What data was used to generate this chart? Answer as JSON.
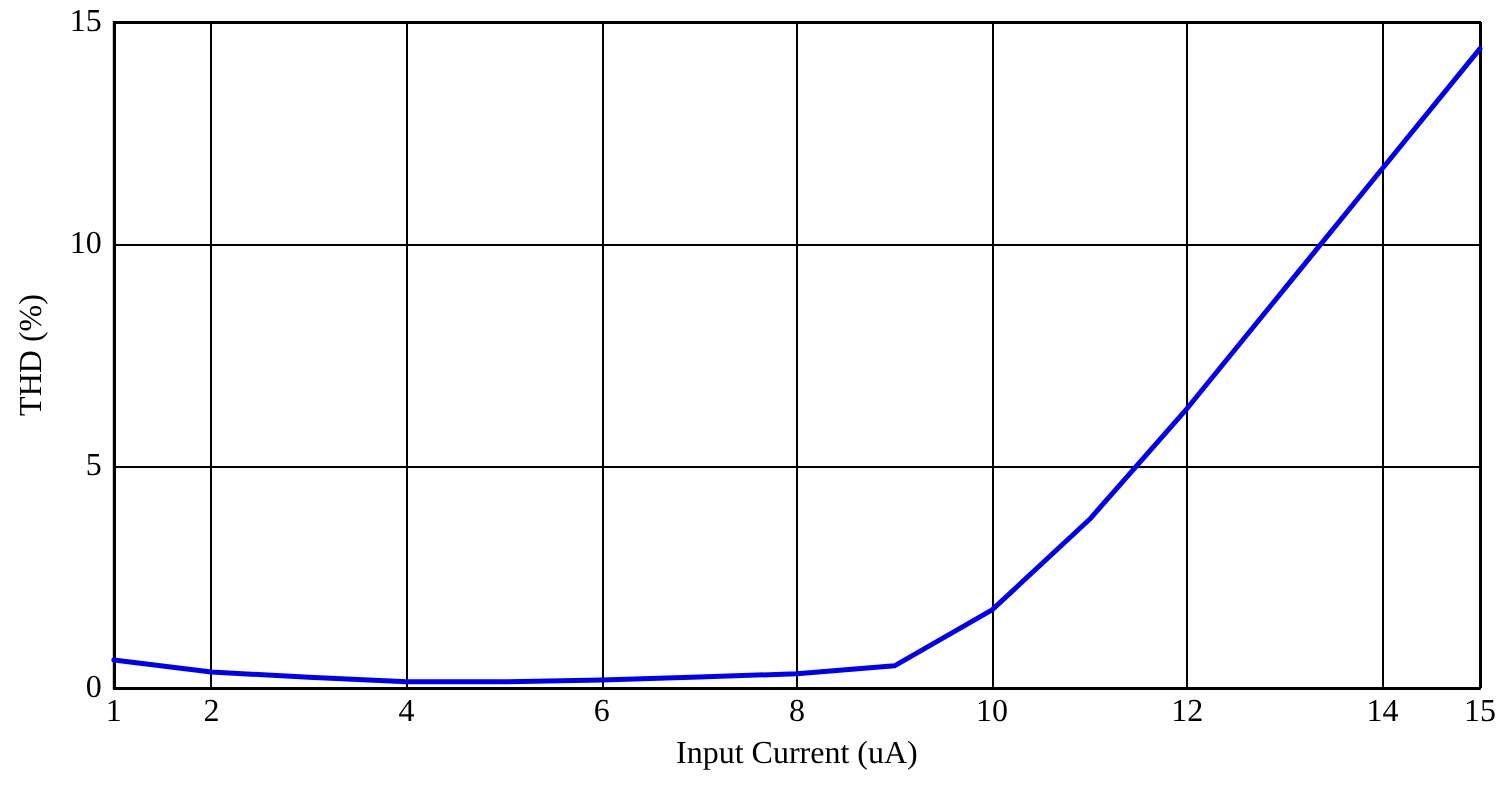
{
  "chart_data": {
    "type": "line",
    "xlabel": "Input Current (uA)",
    "ylabel": "THD (%)",
    "x": [
      1,
      2,
      3,
      4,
      5,
      6,
      7,
      8,
      9,
      10,
      11,
      12,
      13,
      14,
      15
    ],
    "series": [
      {
        "color": "#0000ee",
        "values": [
          0.63,
          0.36,
          0.24,
          0.14,
          0.14,
          0.18,
          0.25,
          0.32,
          0.5,
          1.76,
          3.8,
          6.3,
          9.0,
          11.7,
          14.4
        ]
      }
    ],
    "xlim": [
      1,
      15
    ],
    "xticks": [
      1,
      2,
      4,
      6,
      8,
      10,
      12,
      14,
      15
    ],
    "ylim": [
      0,
      15
    ],
    "yticks": [
      0,
      5,
      10,
      15
    ],
    "grid": true,
    "marker": "none",
    "line_style": "solid"
  }
}
